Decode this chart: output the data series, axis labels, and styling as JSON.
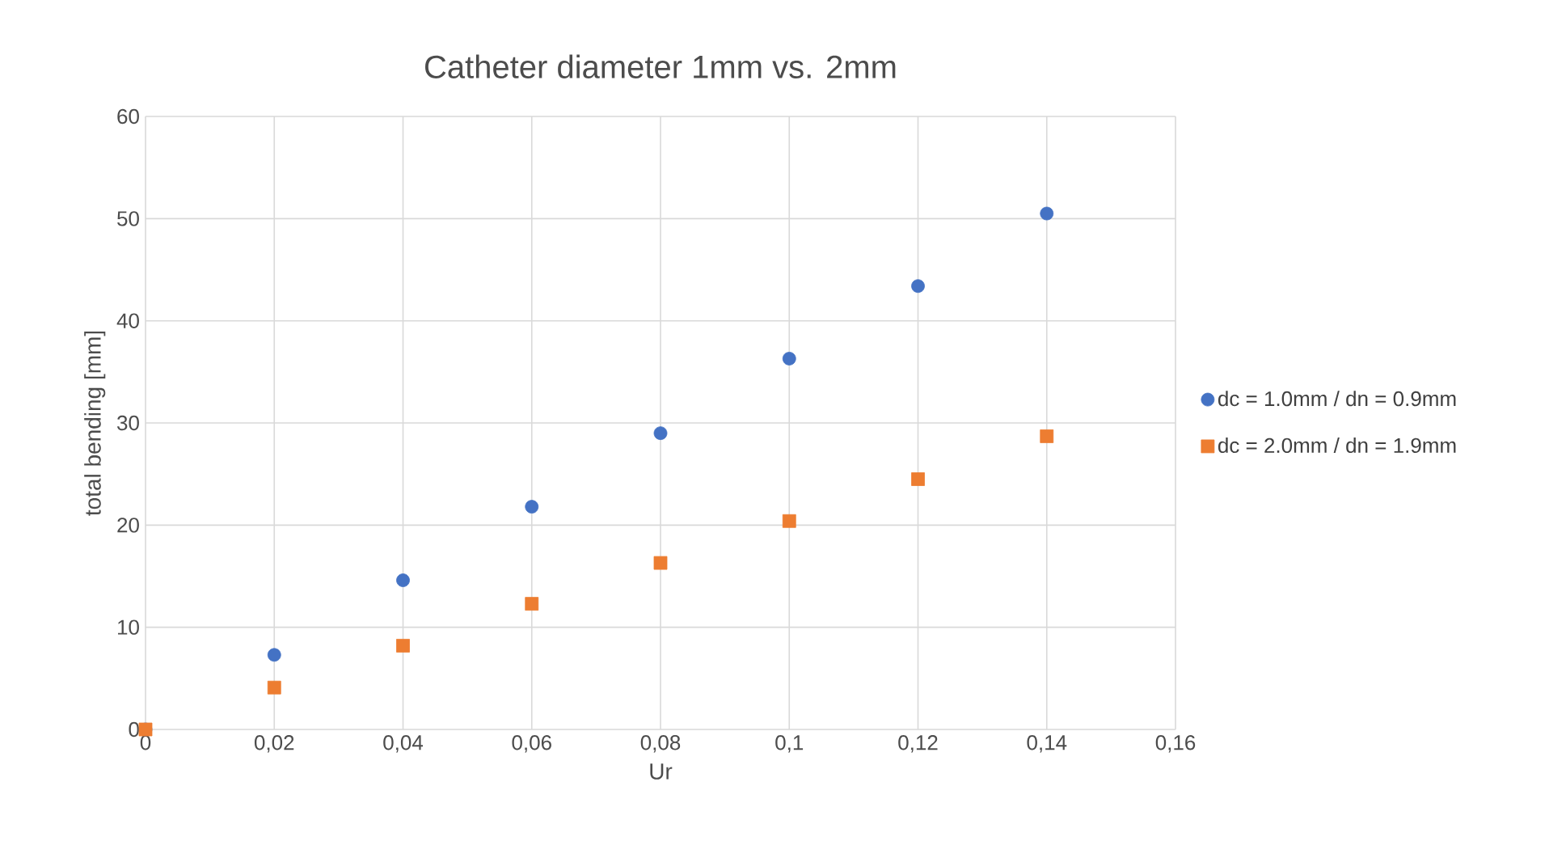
{
  "chart_data": {
    "type": "scatter",
    "title": "Catheter diameter 1mm vs. 2mm",
    "xlabel": "Ur",
    "ylabel": "total bending [mm]",
    "x": [
      0,
      0.02,
      0.04,
      0.06,
      0.08,
      0.1,
      0.12,
      0.14
    ],
    "series": [
      {
        "name": "dc = 1.0mm / dn = 0.9mm",
        "color": "#4472c4",
        "marker": "circle",
        "values": [
          0,
          7.3,
          14.6,
          21.8,
          29.0,
          36.3,
          43.4,
          50.5
        ]
      },
      {
        "name": "dc = 2.0mm / dn = 1.9mm",
        "color": "#ed7d31",
        "marker": "square",
        "values": [
          0,
          4.1,
          8.2,
          12.3,
          16.3,
          20.4,
          24.5,
          28.7
        ]
      }
    ],
    "xlim": [
      0,
      0.16
    ],
    "ylim": [
      0,
      60
    ],
    "xticks": [
      0,
      {
        "value": 0.02,
        "label": "0,02"
      },
      {
        "value": 0.04,
        "label": "0,04"
      },
      {
        "value": 0.06,
        "label": "0,06"
      },
      {
        "value": 0.08,
        "label": "0,08"
      },
      {
        "value": 0.1,
        "label": "0,1"
      },
      {
        "value": 0.12,
        "label": "0,12"
      },
      {
        "value": 0.14,
        "label": "0,14"
      },
      {
        "value": 0.16,
        "label": "0,16"
      }
    ],
    "yticks": [
      0,
      10,
      20,
      30,
      40,
      50,
      60
    ],
    "grid": true,
    "legend": "right"
  }
}
